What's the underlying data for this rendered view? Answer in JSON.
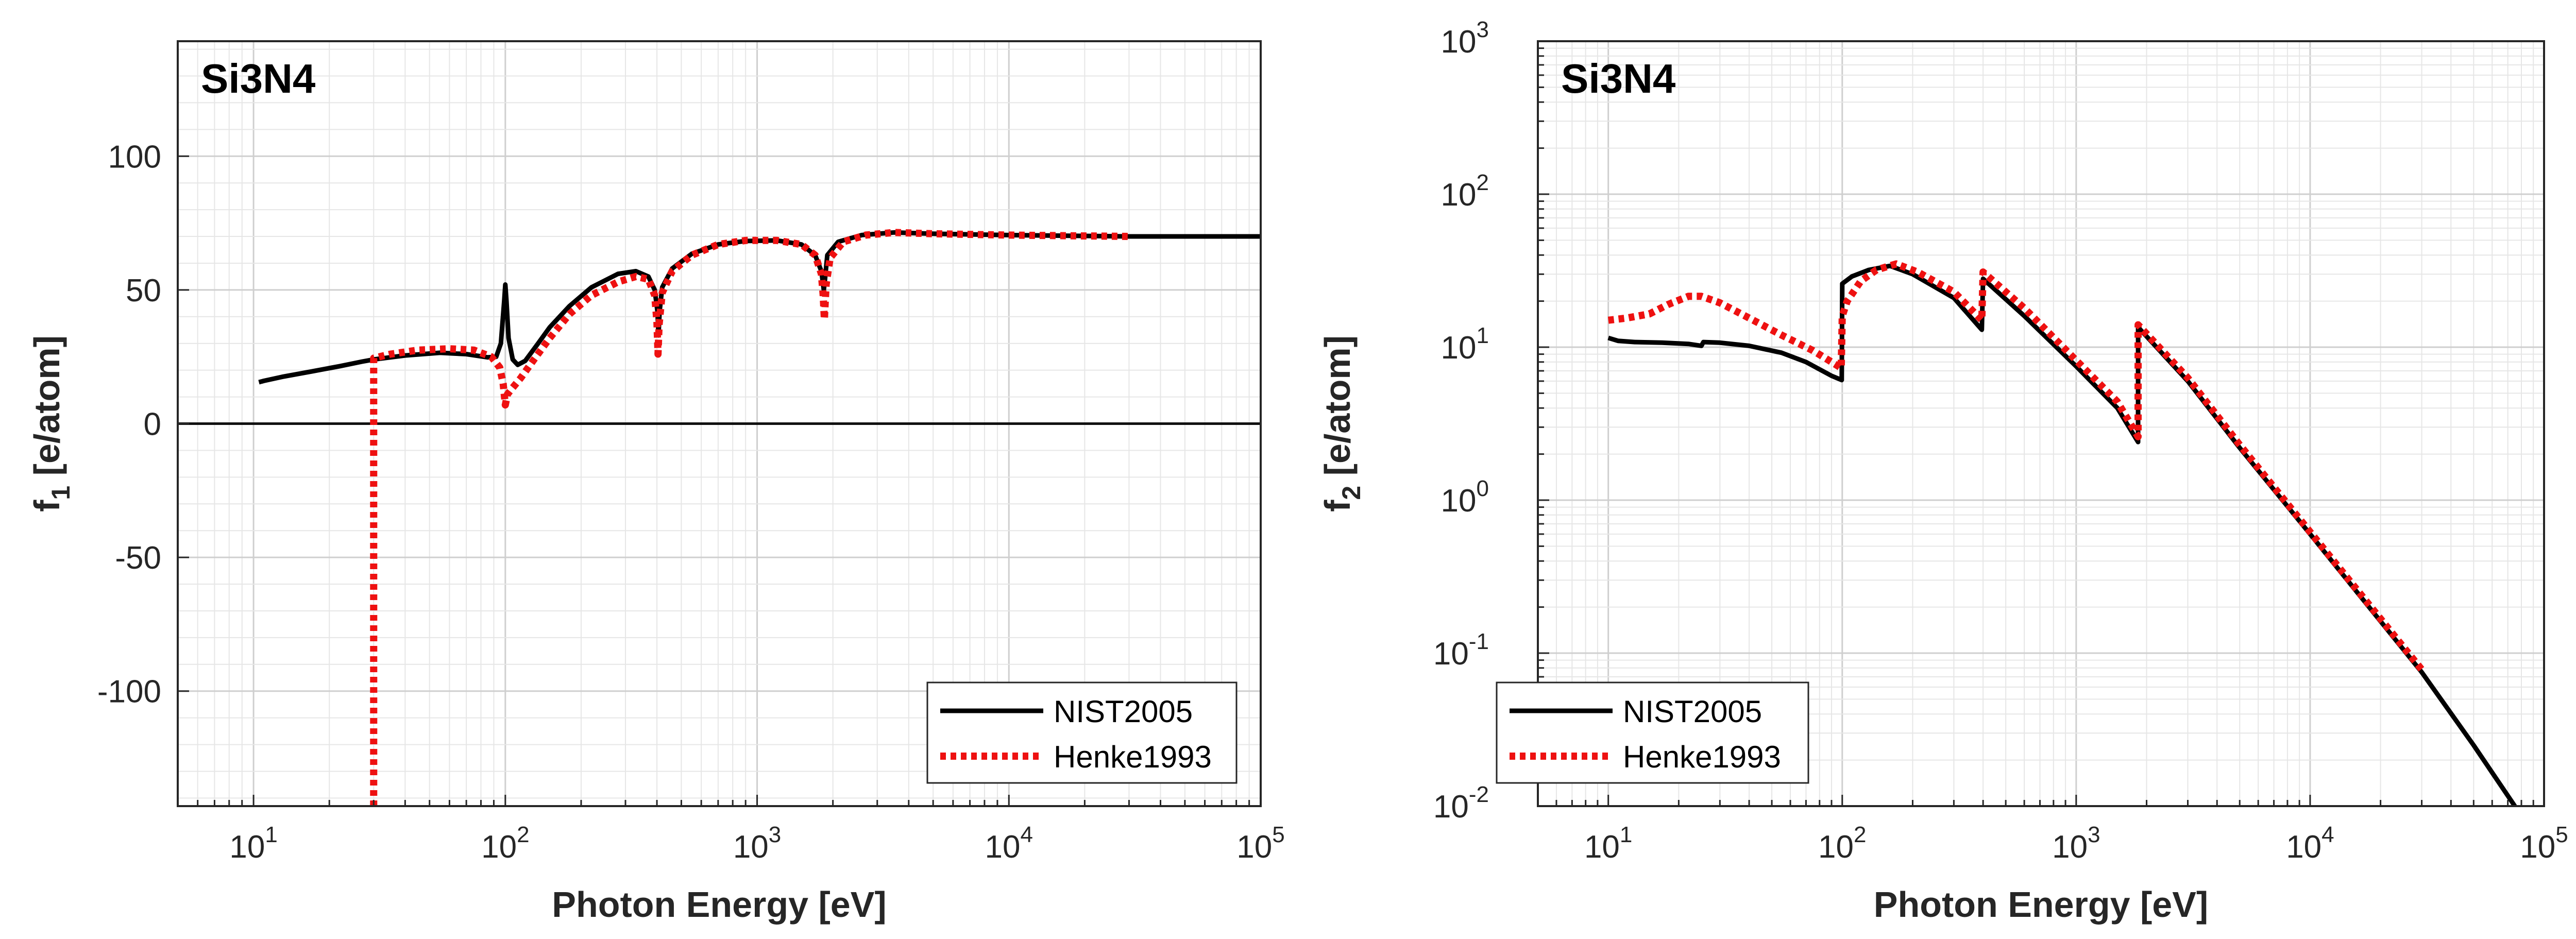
{
  "colors": {
    "nist": "#000000",
    "henke": "#ee1111",
    "grid": "#d4d4d4",
    "axis": "#262626"
  },
  "chart_data": [
    {
      "type": "line",
      "title": "Si3N4",
      "xlabel": "Photon Energy [eV]",
      "ylabel": "f1 [e/atom]",
      "ylabel_main": "f",
      "ylabel_sub": "1",
      "ylabel_rest": " [e/atom]",
      "xscale": "log",
      "yscale": "linear",
      "xlim": [
        5,
        100000
      ],
      "ylim": [
        -143,
        143
      ],
      "xticks": [
        10,
        100,
        1000,
        10000,
        100000
      ],
      "xtick_exponents": [
        "1",
        "2",
        "3",
        "4",
        "5"
      ],
      "yticks": [
        -100,
        -50,
        0,
        50,
        100
      ],
      "ytick_labels": [
        "-100",
        "-50",
        "0",
        "50",
        "100"
      ],
      "grid": true,
      "zero_line": true,
      "legend_position": "bottom-right",
      "series": [
        {
          "name": "NIST2005",
          "style": "solid",
          "points": [
            [
              10.5,
              15.5
            ],
            [
              11,
              16
            ],
            [
              13,
              17.5
            ],
            [
              17,
              19.5
            ],
            [
              22,
              21.5
            ],
            [
              27,
              23.2
            ],
            [
              30,
              24
            ],
            [
              40,
              25.5
            ],
            [
              55,
              26.5
            ],
            [
              70,
              26
            ],
            [
              85,
              24.8
            ],
            [
              92,
              25
            ],
            [
              96,
              30
            ],
            [
              99,
              46
            ],
            [
              100,
              52
            ],
            [
              101,
              46
            ],
            [
              103,
              32
            ],
            [
              107,
              24
            ],
            [
              112,
              22
            ],
            [
              120,
              23.5
            ],
            [
              135,
              30
            ],
            [
              150,
              36
            ],
            [
              180,
              44
            ],
            [
              220,
              51
            ],
            [
              280,
              56
            ],
            [
              330,
              57
            ],
            [
              370,
              55
            ],
            [
              392,
              50
            ],
            [
              402,
              42
            ],
            [
              406,
              33
            ],
            [
              410,
              42
            ],
            [
              420,
              51
            ],
            [
              460,
              58
            ],
            [
              550,
              63.5
            ],
            [
              700,
              67
            ],
            [
              900,
              68.3
            ],
            [
              1200,
              68.5
            ],
            [
              1500,
              67
            ],
            [
              1700,
              63
            ],
            [
              1800,
              57
            ],
            [
              1840,
              50
            ],
            [
              1860,
              54
            ],
            [
              1900,
              63
            ],
            [
              2100,
              68
            ],
            [
              2600,
              70.5
            ],
            [
              3500,
              71.5
            ],
            [
              5000,
              71
            ],
            [
              10000,
              70.5
            ],
            [
              30000,
              70
            ],
            [
              100000,
              70
            ]
          ]
        },
        {
          "name": "Henke1993",
          "style": "dotted",
          "points": [
            [
              30,
              -143
            ],
            [
              30,
              22
            ],
            [
              30,
              24.5
            ],
            [
              35,
              26
            ],
            [
              45,
              27.5
            ],
            [
              60,
              28
            ],
            [
              75,
              27.5
            ],
            [
              88,
              25
            ],
            [
              95,
              21
            ],
            [
              98,
              15
            ],
            [
              100,
              7
            ],
            [
              102,
              11
            ],
            [
              106,
              13
            ],
            [
              115,
              17
            ],
            [
              130,
              24
            ],
            [
              150,
              32
            ],
            [
              180,
              41
            ],
            [
              220,
              48
            ],
            [
              280,
              53
            ],
            [
              330,
              55
            ],
            [
              370,
              54
            ],
            [
              392,
              48
            ],
            [
              400,
              38
            ],
            [
              404,
              26
            ],
            [
              408,
              37
            ],
            [
              420,
              49
            ],
            [
              460,
              57
            ],
            [
              550,
              63
            ],
            [
              700,
              67
            ],
            [
              900,
              68.5
            ],
            [
              1200,
              68.5
            ],
            [
              1500,
              67
            ],
            [
              1700,
              63
            ],
            [
              1800,
              56
            ],
            [
              1830,
              48
            ],
            [
              1850,
              39
            ],
            [
              1880,
              52
            ],
            [
              1950,
              62
            ],
            [
              2200,
              68
            ],
            [
              2700,
              70.5
            ],
            [
              3500,
              71.5
            ],
            [
              5000,
              71
            ],
            [
              10000,
              70.5
            ],
            [
              30000,
              70
            ]
          ]
        }
      ]
    },
    {
      "type": "line",
      "title": "Si3N4",
      "xlabel": "Photon Energy [eV]",
      "ylabel": "f2 [e/atom]",
      "ylabel_main": "f",
      "ylabel_sub": "2",
      "ylabel_rest": " [e/atom]",
      "xscale": "log",
      "yscale": "log",
      "xlim": [
        5,
        100000
      ],
      "ylim": [
        0.01,
        1000
      ],
      "xticks": [
        10,
        100,
        1000,
        10000,
        100000
      ],
      "xtick_exponents": [
        "1",
        "2",
        "3",
        "4",
        "5"
      ],
      "yticks": [
        0.01,
        0.1,
        1,
        10,
        100,
        1000
      ],
      "ytick_exponents": [
        "-2",
        "-1",
        "0",
        "1",
        "2",
        "3"
      ],
      "grid": true,
      "zero_line": false,
      "legend_position": "bottom-left",
      "series": [
        {
          "name": "NIST2005",
          "style": "solid",
          "points": [
            [
              10,
              11.5
            ],
            [
              11,
              11
            ],
            [
              13,
              10.8
            ],
            [
              17,
              10.7
            ],
            [
              22,
              10.5
            ],
            [
              25,
              10.2
            ],
            [
              25.5,
              10.8
            ],
            [
              30,
              10.7
            ],
            [
              40,
              10.2
            ],
            [
              55,
              9.2
            ],
            [
              70,
              8
            ],
            [
              90,
              6.5
            ],
            [
              99.5,
              6.1
            ],
            [
              100,
              26
            ],
            [
              110,
              29
            ],
            [
              130,
              32
            ],
            [
              160,
              34
            ],
            [
              200,
              30
            ],
            [
              300,
              21
            ],
            [
              395,
              13
            ],
            [
              400,
              28
            ],
            [
              600,
              16
            ],
            [
              1000,
              7.5
            ],
            [
              1500,
              4
            ],
            [
              1839,
              2.4
            ],
            [
              1840,
              13.5
            ],
            [
              3000,
              6
            ],
            [
              5000,
              2.2
            ],
            [
              10000,
              0.6
            ],
            [
              30000,
              0.075
            ],
            [
              50000,
              0.025
            ],
            [
              75000,
              0.01
            ]
          ]
        },
        {
          "name": "Henke1993",
          "style": "dotted",
          "points": [
            [
              10,
              15
            ],
            [
              12,
              15.5
            ],
            [
              15,
              16.5
            ],
            [
              18,
              19
            ],
            [
              22,
              21.5
            ],
            [
              25,
              21.5
            ],
            [
              30,
              19.5
            ],
            [
              40,
              15.5
            ],
            [
              55,
              12
            ],
            [
              75,
              9.5
            ],
            [
              95,
              7.6
            ],
            [
              99,
              7.3
            ],
            [
              100,
              16
            ],
            [
              105,
              20
            ],
            [
              120,
              27
            ],
            [
              140,
              32
            ],
            [
              170,
              35
            ],
            [
              210,
              31
            ],
            [
              300,
              23
            ],
            [
              395,
              15
            ],
            [
              400,
              31
            ],
            [
              600,
              18
            ],
            [
              1000,
              8.2
            ],
            [
              1500,
              4.4
            ],
            [
              1839,
              2.6
            ],
            [
              1840,
              14
            ],
            [
              3000,
              6.3
            ],
            [
              5000,
              2.3
            ],
            [
              10000,
              0.62
            ],
            [
              30000,
              0.078
            ]
          ]
        }
      ]
    }
  ]
}
